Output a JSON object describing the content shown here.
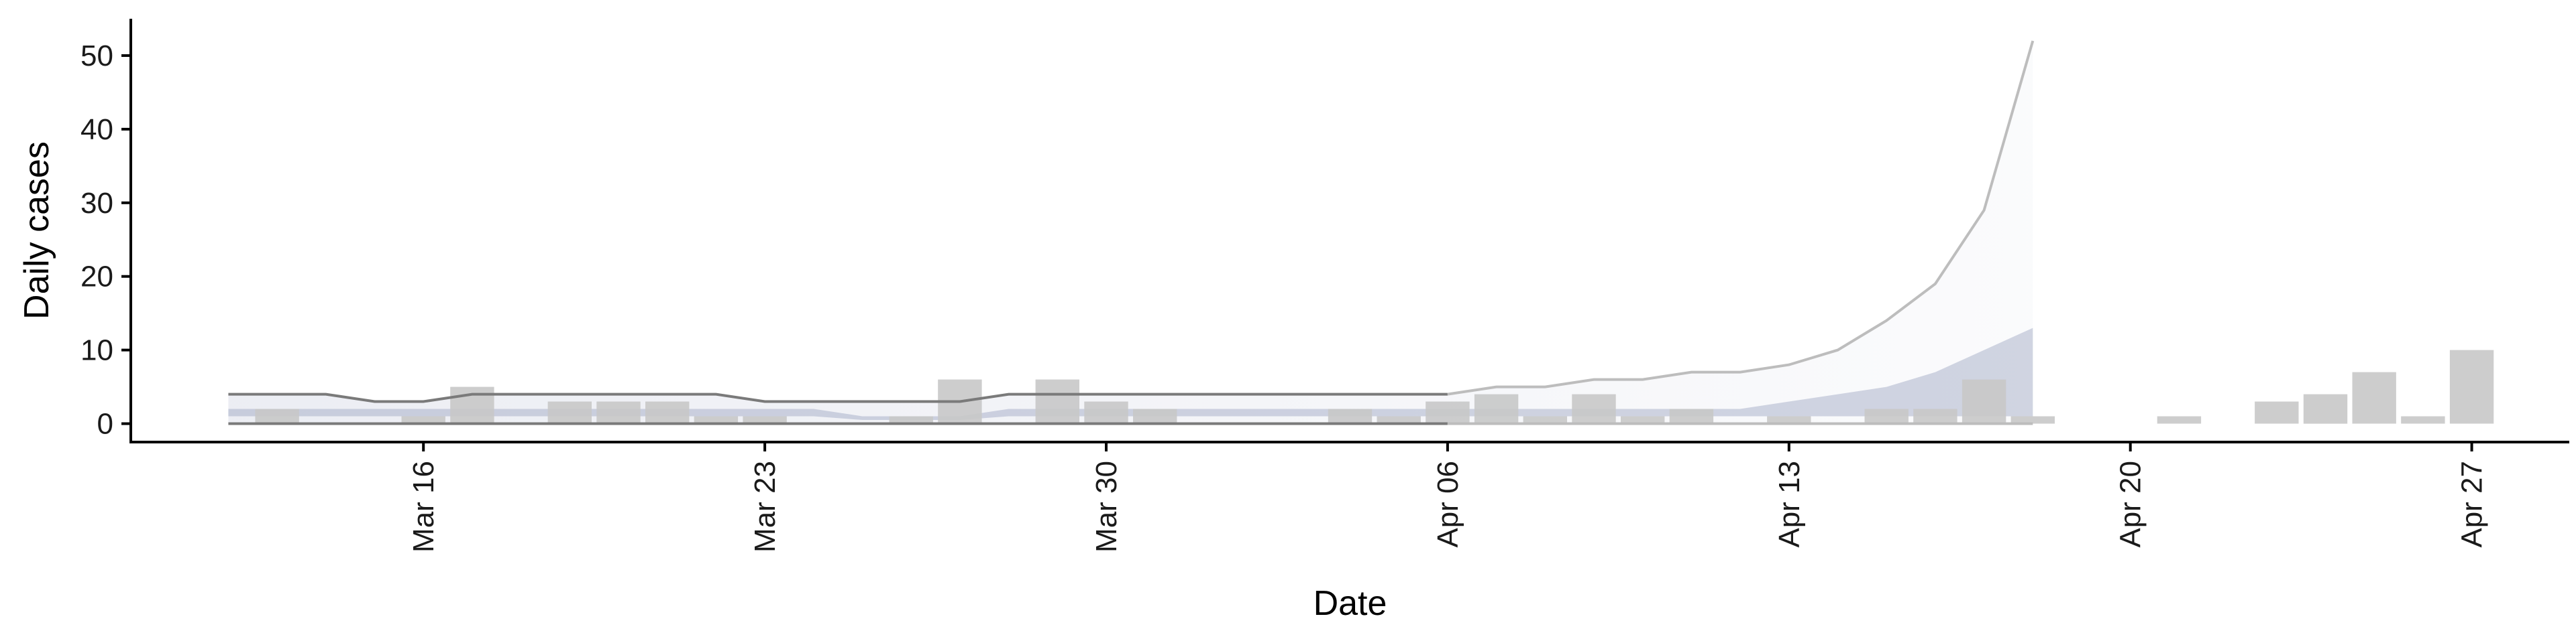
{
  "chart_data": {
    "type": "bar",
    "xlabel": "Date",
    "ylabel": "Daily cases",
    "x_range": [
      "2020-03-10",
      "2020-04-29"
    ],
    "ylim": [
      -2.5,
      55
    ],
    "y_ticks": [
      0,
      10,
      20,
      30,
      40,
      50
    ],
    "x_ticks": [
      {
        "date": "2020-03-16",
        "label": "Mar 16"
      },
      {
        "date": "2020-03-23",
        "label": "Mar 23"
      },
      {
        "date": "2020-03-30",
        "label": "Mar 30"
      },
      {
        "date": "2020-04-06",
        "label": "Apr 06"
      },
      {
        "date": "2020-04-13",
        "label": "Apr 13"
      },
      {
        "date": "2020-04-20",
        "label": "Apr 20"
      },
      {
        "date": "2020-04-27",
        "label": "Apr 27"
      }
    ],
    "grid": false,
    "legend": "none",
    "colors": {
      "bars": "#c8c8c8",
      "ribbon": "#9ba3c2",
      "line_observed": "#7a7a7a",
      "line_forecast": "#bdbdbd",
      "axis": "#000000"
    },
    "bars": [
      {
        "date": "2020-03-13",
        "value": 2
      },
      {
        "date": "2020-03-16",
        "value": 1
      },
      {
        "date": "2020-03-17",
        "value": 5
      },
      {
        "date": "2020-03-19",
        "value": 3
      },
      {
        "date": "2020-03-20",
        "value": 3
      },
      {
        "date": "2020-03-21",
        "value": 3
      },
      {
        "date": "2020-03-22",
        "value": 1
      },
      {
        "date": "2020-03-23",
        "value": 1
      },
      {
        "date": "2020-03-26",
        "value": 1
      },
      {
        "date": "2020-03-27",
        "value": 6
      },
      {
        "date": "2020-03-29",
        "value": 6
      },
      {
        "date": "2020-03-30",
        "value": 3
      },
      {
        "date": "2020-03-31",
        "value": 2
      },
      {
        "date": "2020-04-04",
        "value": 2
      },
      {
        "date": "2020-04-05",
        "value": 1
      },
      {
        "date": "2020-04-06",
        "value": 3
      },
      {
        "date": "2020-04-07",
        "value": 4
      },
      {
        "date": "2020-04-08",
        "value": 1
      },
      {
        "date": "2020-04-09",
        "value": 4
      },
      {
        "date": "2020-04-10",
        "value": 1
      },
      {
        "date": "2020-04-11",
        "value": 2
      },
      {
        "date": "2020-04-13",
        "value": 1
      },
      {
        "date": "2020-04-15",
        "value": 2
      },
      {
        "date": "2020-04-16",
        "value": 2
      },
      {
        "date": "2020-04-17",
        "value": 6
      },
      {
        "date": "2020-04-18",
        "value": 1
      },
      {
        "date": "2020-04-21",
        "value": 1
      },
      {
        "date": "2020-04-23",
        "value": 3
      },
      {
        "date": "2020-04-24",
        "value": 4
      },
      {
        "date": "2020-04-25",
        "value": 7
      },
      {
        "date": "2020-04-26",
        "value": 1
      },
      {
        "date": "2020-04-27",
        "value": 10
      }
    ],
    "estimate": {
      "observed_end": "2020-04-06",
      "forecast_end": "2020-04-18",
      "dates": [
        "2020-03-12",
        "2020-03-13",
        "2020-03-14",
        "2020-03-15",
        "2020-03-16",
        "2020-03-17",
        "2020-03-18",
        "2020-03-19",
        "2020-03-20",
        "2020-03-21",
        "2020-03-22",
        "2020-03-23",
        "2020-03-24",
        "2020-03-25",
        "2020-03-26",
        "2020-03-27",
        "2020-03-28",
        "2020-03-29",
        "2020-03-30",
        "2020-03-31",
        "2020-04-01",
        "2020-04-02",
        "2020-04-03",
        "2020-04-04",
        "2020-04-05",
        "2020-04-06",
        "2020-04-07",
        "2020-04-08",
        "2020-04-09",
        "2020-04-10",
        "2020-04-11",
        "2020-04-12",
        "2020-04-13",
        "2020-04-14",
        "2020-04-15",
        "2020-04-16",
        "2020-04-17",
        "2020-04-18"
      ],
      "upper": [
        4,
        4,
        4,
        3,
        3,
        4,
        4,
        4,
        4,
        4,
        4,
        3,
        3,
        3,
        3,
        3,
        4,
        4,
        4,
        4,
        4,
        4,
        4,
        4,
        4,
        4,
        5,
        5,
        6,
        6,
        7,
        7,
        8,
        10,
        14,
        19,
        29,
        52
      ],
      "lower": [
        0,
        0,
        0,
        0,
        0,
        0,
        0,
        0,
        0,
        0,
        0,
        0,
        0,
        0,
        0,
        0,
        0,
        0,
        0,
        0,
        0,
        0,
        0,
        0,
        0,
        0,
        0,
        0,
        0,
        0,
        0,
        0,
        0,
        0,
        0,
        0,
        0,
        0
      ],
      "ribbon_upper": [
        2,
        2,
        2,
        2,
        2,
        2,
        2,
        2,
        2,
        2,
        2,
        2,
        2,
        1,
        1,
        1,
        2,
        2,
        2,
        2,
        2,
        2,
        2,
        2,
        2,
        2,
        2,
        2,
        2,
        2,
        2,
        2,
        3,
        4,
        5,
        7,
        10,
        13
      ],
      "ribbon_lower": [
        1,
        1,
        1,
        1,
        1,
        1,
        1,
        1,
        1,
        1,
        1,
        1,
        1,
        0.5,
        0.5,
        0.5,
        1,
        1,
        1,
        1,
        1,
        1,
        1,
        1,
        1,
        1,
        1,
        1,
        1,
        1,
        1,
        1,
        1,
        1,
        1,
        1,
        1,
        1
      ]
    }
  }
}
